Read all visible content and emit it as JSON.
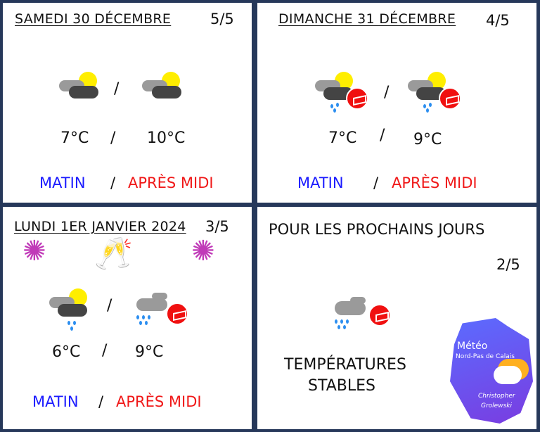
{
  "days": [
    {
      "title": "SAMEDI 30 DÉCEMBRE",
      "score": "5/5",
      "temp_morning": "7°C",
      "temp_afternoon": "10°C",
      "icon_morning": "sun-cloud-icon",
      "icon_afternoon": "sun-cloud-icon"
    },
    {
      "title": "DIMANCHE 31 DÉCEMBRE",
      "score": "4/5",
      "temp_morning": "7°C",
      "temp_afternoon": "9°C",
      "icon_morning": "sun-cloud-rain-wind-icon",
      "icon_afternoon": "sun-cloud-rain-wind-icon"
    },
    {
      "title": "LUNDI 1ER JANVIER 2024",
      "score": "3/5",
      "temp_morning": "6°C",
      "temp_afternoon": "9°C",
      "icon_morning": "sun-cloud-rain-icon",
      "icon_afternoon": "rain-wind-icon"
    }
  ],
  "labels": {
    "morning": "MATIN",
    "afternoon": "APRÈS MIDI",
    "slash": "/"
  },
  "outlook": {
    "title": "POUR LES PROCHAINS JOURS",
    "score": "2/5",
    "line1": "TEMPÉRATURES",
    "line2": "STABLES",
    "icon": "rain-wind-icon"
  },
  "logo": {
    "title": "Météo",
    "subtitle": "Nord-Pas de Calais",
    "author1": "Christopher",
    "author2": "Grolewski"
  },
  "colors": {
    "morning": "#1a1aff",
    "afternoon": "#f01818",
    "border": "#26385a"
  }
}
